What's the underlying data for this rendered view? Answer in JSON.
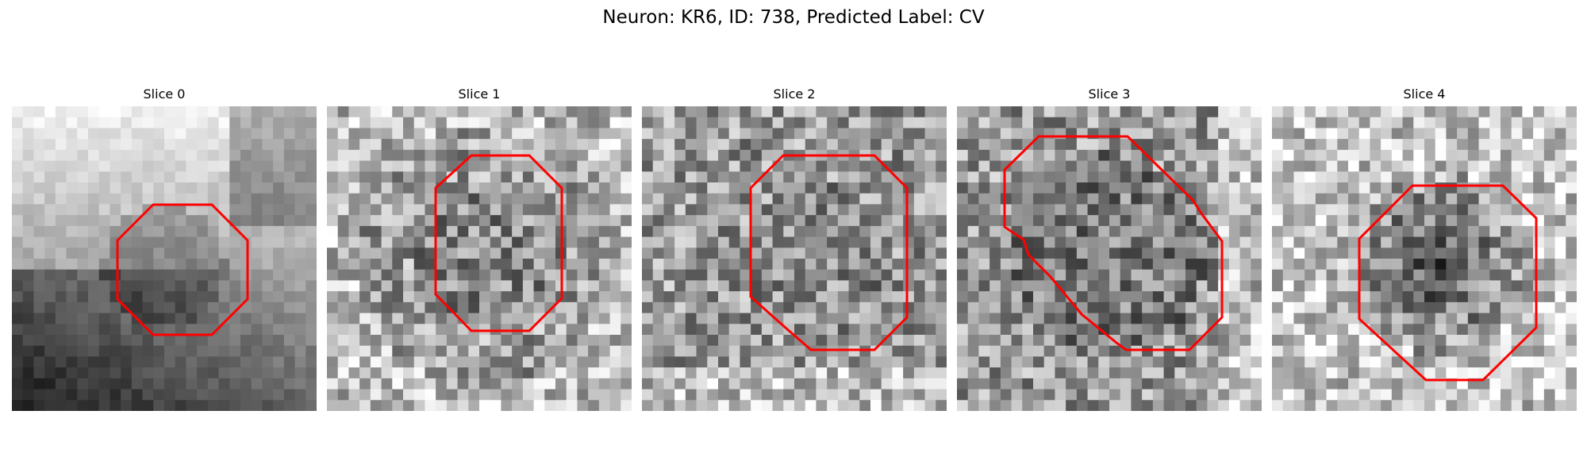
{
  "figure": {
    "title": "Neuron: KR6, ID: 738, Predicted Label: CV",
    "contour_color": "#ff0000",
    "image_colormap": "gray",
    "panels": [
      {
        "title": "Slice 0"
      },
      {
        "title": "Slice 1"
      },
      {
        "title": "Slice 2"
      },
      {
        "title": "Slice 3"
      },
      {
        "title": "Slice 4"
      }
    ]
  }
}
